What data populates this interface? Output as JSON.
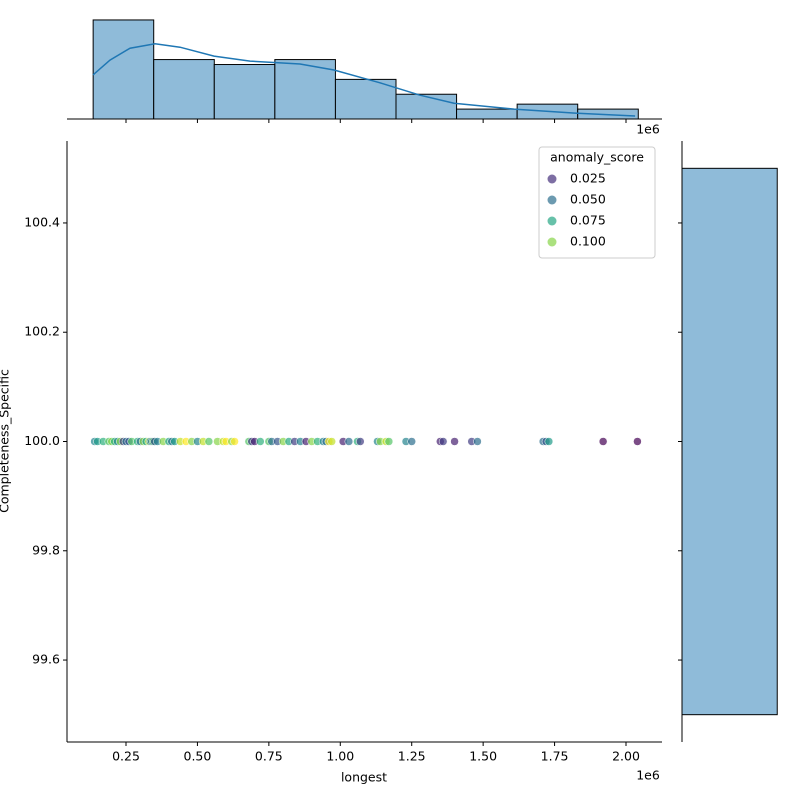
{
  "chart_data": [
    {
      "type": "scatter",
      "xlabel": "longest",
      "ylabel": "Completeness_Specific",
      "x_offset_label": "1e6",
      "xlim": [
        43500,
        2126000
      ],
      "ylim": [
        99.45,
        100.55
      ],
      "xticks": [
        {
          "value": 250000,
          "label": "0.25"
        },
        {
          "value": 500000,
          "label": "0.50"
        },
        {
          "value": 750000,
          "label": "0.75"
        },
        {
          "value": 1000000,
          "label": "1.00"
        },
        {
          "value": 1250000,
          "label": "1.25"
        },
        {
          "value": 1500000,
          "label": "1.50"
        },
        {
          "value": 1750000,
          "label": "1.75"
        },
        {
          "value": 2000000,
          "label": "2.00"
        }
      ],
      "yticks": [
        99.6,
        99.8,
        {
          "value": 100,
          "label": "100.0"
        },
        100.2,
        100.4
      ],
      "cmap": [
        "#440154",
        "#482878",
        "#3e4989",
        "#31688e",
        "#26828e",
        "#1f9e89",
        "#35b779",
        "#6ece58",
        "#b5de2b",
        "#fde725"
      ],
      "alpha": 0.7,
      "x": [
        140000,
        150000,
        170000,
        190000,
        200000,
        210000,
        220000,
        230000,
        240000,
        250000,
        260000,
        270000,
        290000,
        300000,
        310000,
        320000,
        330000,
        335000,
        340000,
        345000,
        350000,
        360000,
        380000,
        400000,
        410000,
        420000,
        440000,
        460000,
        480000,
        500000,
        520000,
        540000,
        570000,
        590000,
        600000,
        620000,
        630000,
        680000,
        690000,
        700000,
        720000,
        750000,
        760000,
        780000,
        800000,
        820000,
        840000,
        860000,
        880000,
        900000,
        920000,
        940000,
        950000,
        960000,
        970000,
        1010000,
        1030000,
        1060000,
        1070000,
        1130000,
        1140000,
        1160000,
        1170000,
        1230000,
        1250000,
        1350000,
        1360000,
        1400000,
        1460000,
        1480000,
        1710000,
        1720000,
        1730000,
        1920000,
        2040000
      ],
      "y": [
        100,
        100,
        100,
        100,
        100,
        100,
        100,
        100,
        100,
        100,
        100,
        100,
        100,
        100,
        100,
        100,
        100,
        100,
        100,
        100,
        100,
        100,
        100,
        100,
        100,
        100,
        100,
        100,
        100,
        100,
        100,
        100,
        100,
        100,
        100,
        100,
        100,
        100,
        100,
        100,
        100,
        100,
        100,
        100,
        100,
        100,
        100,
        100,
        100,
        100,
        100,
        100,
        100,
        100,
        100,
        100,
        100,
        100,
        100,
        100,
        100,
        100,
        100,
        100,
        100,
        100,
        100,
        100,
        100,
        100,
        100,
        100,
        100,
        100,
        100
      ],
      "hue": [
        0.06,
        0.07,
        0.08,
        0.09,
        0.1,
        0.08,
        0.06,
        0.1,
        0.03,
        0.05,
        0.04,
        0.09,
        0.08,
        0.05,
        0.1,
        0.075,
        0.11,
        0.06,
        0.05,
        0.09,
        0.04,
        0.06,
        0.1,
        0.075,
        0.05,
        0.07,
        0.11,
        0.12,
        0.1,
        0.06,
        0.11,
        0.09,
        0.1,
        0.11,
        0.12,
        0.1,
        0.12,
        0.09,
        0.03,
        0.02,
        0.08,
        0.09,
        0.05,
        0.04,
        0.1,
        0.075,
        0.03,
        0.06,
        0.02,
        0.1,
        0.08,
        0.06,
        0.05,
        0.12,
        0.11,
        0.02,
        0.05,
        0.08,
        0.03,
        0.06,
        0.1,
        0.11,
        0.09,
        0.06,
        0.05,
        0.02,
        0.03,
        0.02,
        0.03,
        0.05,
        0.05,
        0.04,
        0.07,
        0.01,
        0.01
      ],
      "legend": {
        "title": "anomaly_score",
        "loc": "upper right",
        "entries": [
          {
            "value": 0.025,
            "label": "0.025"
          },
          {
            "value": 0.05,
            "label": "0.050"
          },
          {
            "value": 0.075,
            "label": "0.075"
          },
          {
            "value": 0.1,
            "label": "0.100"
          }
        ]
      }
    },
    {
      "type": "histogram",
      "orientation": "vertical",
      "color": "#8fbbd9",
      "x_offset_label": "1e6",
      "bins": [
        135000,
        347000,
        559000,
        771000,
        983000,
        1195000,
        1407000,
        1619000,
        1831000,
        2043000
      ],
      "counts": [
        20,
        12,
        11,
        12,
        8,
        5,
        2,
        3,
        2
      ],
      "ylim": [
        0,
        21
      ],
      "kde": {
        "color": "#1f77b4",
        "x": [
          134500,
          194000,
          264000,
          351500,
          439000,
          558000,
          684000,
          859000,
          978000,
          1139000,
          1279000,
          1398000,
          1608000,
          1821500,
          2032000
        ],
        "values": [
          8.9,
          11.9,
          14.3,
          15.2,
          14.5,
          12.7,
          11.7,
          11.1,
          9.9,
          7.3,
          4.8,
          3.2,
          2.0,
          1.2,
          0.6
        ]
      }
    },
    {
      "type": "histogram",
      "orientation": "horizontal",
      "color": "#8fbbd9",
      "bins": [
        99.5,
        100.5
      ],
      "counts": [
        75
      ],
      "xlim": [
        0,
        78.75
      ]
    }
  ]
}
